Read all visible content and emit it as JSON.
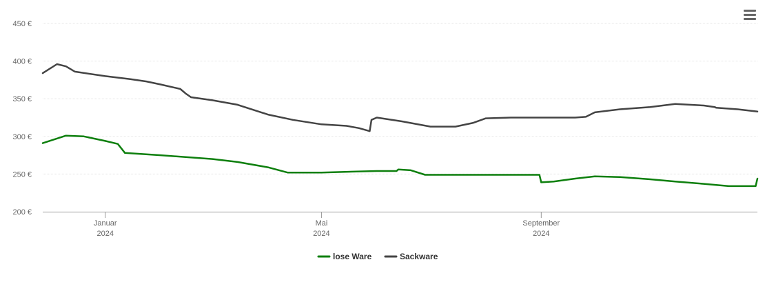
{
  "menu": {
    "icon": "hamburger-menu-icon"
  },
  "colors": {
    "lose_ware": "#0d7f0d",
    "sackware": "#444444"
  },
  "chart_data": {
    "type": "line",
    "currency_suffix": "€",
    "y_ticks": [
      "450 €",
      "400 €",
      "350 €",
      "300 €",
      "250 €",
      "200 €"
    ],
    "ylim": [
      200,
      450
    ],
    "y_tick_values": [
      450,
      400,
      350,
      300,
      250,
      200
    ],
    "x_tick_labels": [
      {
        "month": "Januar",
        "year": "2024",
        "date": "2024-01-01"
      },
      {
        "month": "Mai",
        "year": "2024",
        "date": "2024-05-01"
      },
      {
        "month": "September",
        "year": "2024",
        "date": "2024-09-01"
      }
    ],
    "xlim": [
      "2023-11-27",
      "2024-12-31"
    ],
    "grid": true,
    "legend_position": "bottom-center",
    "series": [
      {
        "name": "lose Ware",
        "color": "#0d7f0d",
        "points": [
          [
            "2023-11-27",
            291
          ],
          [
            "2023-12-10",
            301
          ],
          [
            "2023-12-20",
            300
          ],
          [
            "2024-01-01",
            294
          ],
          [
            "2024-01-08",
            290
          ],
          [
            "2024-01-12",
            278
          ],
          [
            "2024-02-01",
            275
          ],
          [
            "2024-03-01",
            270
          ],
          [
            "2024-03-15",
            266
          ],
          [
            "2024-04-01",
            259
          ],
          [
            "2024-04-12",
            252
          ],
          [
            "2024-05-01",
            252
          ],
          [
            "2024-06-01",
            254
          ],
          [
            "2024-06-12",
            254
          ],
          [
            "2024-06-13",
            256
          ],
          [
            "2024-06-20",
            255
          ],
          [
            "2024-06-28",
            249
          ],
          [
            "2024-08-31",
            249
          ],
          [
            "2024-09-01",
            239
          ],
          [
            "2024-09-08",
            240
          ],
          [
            "2024-09-20",
            244
          ],
          [
            "2024-10-01",
            247
          ],
          [
            "2024-10-15",
            246
          ],
          [
            "2024-11-01",
            243
          ],
          [
            "2024-11-15",
            240
          ],
          [
            "2024-12-01",
            237
          ],
          [
            "2024-12-15",
            234
          ],
          [
            "2024-12-30",
            234
          ],
          [
            "2024-12-31",
            244
          ]
        ]
      },
      {
        "name": "Sackware",
        "color": "#444444",
        "points": [
          [
            "2023-11-27",
            384
          ],
          [
            "2023-12-05",
            396
          ],
          [
            "2023-12-10",
            393
          ],
          [
            "2023-12-15",
            386
          ],
          [
            "2024-01-01",
            380
          ],
          [
            "2024-01-15",
            376
          ],
          [
            "2024-01-24",
            373
          ],
          [
            "2024-02-01",
            369
          ],
          [
            "2024-02-12",
            363
          ],
          [
            "2024-02-15",
            357
          ],
          [
            "2024-02-18",
            352
          ],
          [
            "2024-03-01",
            348
          ],
          [
            "2024-03-15",
            342
          ],
          [
            "2024-04-01",
            329
          ],
          [
            "2024-04-15",
            322
          ],
          [
            "2024-05-01",
            316
          ],
          [
            "2024-05-15",
            314
          ],
          [
            "2024-05-22",
            311
          ],
          [
            "2024-05-28",
            307
          ],
          [
            "2024-05-29",
            322
          ],
          [
            "2024-06-01",
            325
          ],
          [
            "2024-06-15",
            320
          ],
          [
            "2024-07-01",
            313
          ],
          [
            "2024-07-15",
            313
          ],
          [
            "2024-07-25",
            318
          ],
          [
            "2024-08-01",
            324
          ],
          [
            "2024-08-15",
            325
          ],
          [
            "2024-09-03",
            325
          ],
          [
            "2024-09-20",
            325
          ],
          [
            "2024-09-26",
            326
          ],
          [
            "2024-10-01",
            332
          ],
          [
            "2024-10-15",
            336
          ],
          [
            "2024-11-01",
            339
          ],
          [
            "2024-11-15",
            343
          ],
          [
            "2024-12-01",
            341
          ],
          [
            "2024-12-07",
            339
          ],
          [
            "2024-12-08",
            338
          ],
          [
            "2024-12-20",
            336
          ],
          [
            "2024-12-31",
            333
          ]
        ]
      }
    ]
  }
}
